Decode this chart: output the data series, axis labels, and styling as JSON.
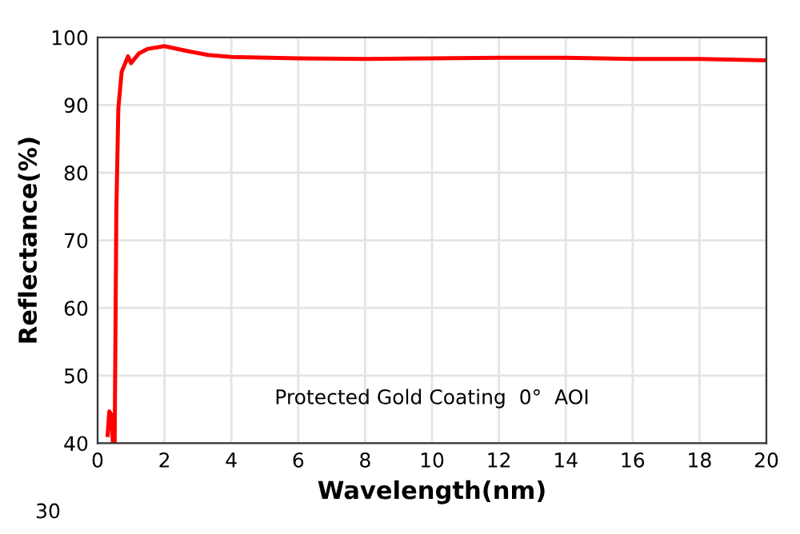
{
  "chart_data": {
    "type": "line",
    "xlabel": "Wavelength(nm)",
    "ylabel": "Reflectance(%)",
    "annotations": [
      "Protected Gold Coating  0°  AOI",
      "30"
    ],
    "x": [
      0.3,
      0.35,
      0.4,
      0.46,
      0.51,
      0.56,
      0.62,
      0.72,
      0.91,
      1.0,
      1.23,
      1.5,
      2.0,
      2.67,
      3.3,
      4.0,
      6.0,
      8.0,
      10.0,
      12.0,
      14.0,
      16.0,
      18.0,
      20.0
    ],
    "series": [
      {
        "color": "#ff0000",
        "values": [
          41.2,
          44.7,
          44.3,
          40,
          40,
          74,
          89.5,
          94.9,
          97.2,
          96.2,
          97.6,
          98.3,
          98.7,
          98.0,
          97.4,
          97.1,
          96.9,
          96.8,
          96.9,
          97.0,
          97.0,
          96.8,
          96.8,
          96.6
        ]
      }
    ],
    "xlim": [
      0,
      20
    ],
    "xticks": [
      0,
      2,
      4,
      6,
      8,
      10,
      12,
      14,
      16,
      18,
      20
    ],
    "ylim": [
      40,
      100
    ],
    "yticks": [
      40,
      50,
      60,
      70,
      80,
      90,
      100
    ],
    "grid": true,
    "legend": false,
    "marker": "none",
    "line_style": "solid"
  }
}
